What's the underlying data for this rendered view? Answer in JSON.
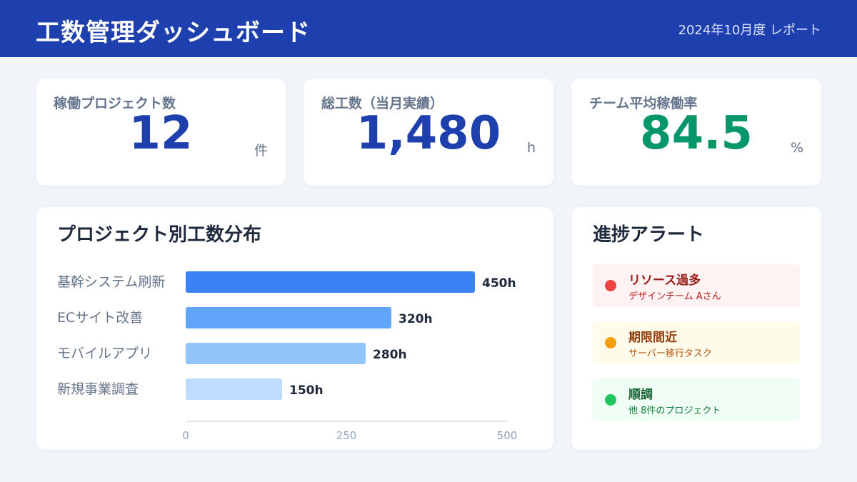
{
  "header": {
    "title": "工数管理ダッシュボード",
    "period": "2024年10月度 レポート"
  },
  "kpis": [
    {
      "label": "稼働プロジェクト数",
      "value": "12",
      "unit": "件"
    },
    {
      "label": "総工数（当月実績）",
      "value": "1,480",
      "unit": "h"
    },
    {
      "label": "チーム平均稼働率",
      "value": "84.5",
      "unit": "%"
    }
  ],
  "colors": {
    "header": "#1e40af",
    "kpi_value": "#1e40af",
    "kpi_value_good": "#059669"
  },
  "chart": {
    "title": "プロジェクト別工数分布"
  },
  "chart_data": {
    "type": "bar",
    "orientation": "horizontal",
    "categories": [
      "基幹システム刷新",
      "ECサイト改善",
      "モバイルアプリ",
      "新規事業調査"
    ],
    "values": [
      450,
      320,
      280,
      150
    ],
    "data_labels": [
      "450h",
      "320h",
      "280h",
      "150h"
    ],
    "bar_colors": [
      "#3b82f6",
      "#60a5fa",
      "#93c5fd",
      "#bfdbfe"
    ],
    "xticks": [
      "0",
      "250",
      "500"
    ],
    "xlim": [
      0,
      500
    ],
    "grid": false,
    "legend": "none"
  },
  "alerts": {
    "title": "進捗アラート",
    "items": [
      {
        "title": "リソース過多",
        "sub": "デザインチーム Aさん",
        "icon": "status-dot-red-icon",
        "dot": "#ef4444",
        "bg": "#fef2f2",
        "title_color": "#991b1b",
        "sub_color": "#b91c1c"
      },
      {
        "title": "期限間近",
        "sub": "サーバー移行タスク",
        "icon": "status-dot-amber-icon",
        "dot": "#f59e0b",
        "bg": "#fffbeb",
        "title_color": "#92400e",
        "sub_color": "#b45309"
      },
      {
        "title": "順調",
        "sub": "他 8件のプロジェクト",
        "icon": "status-dot-green-icon",
        "dot": "#22c55e",
        "bg": "#f0fdf4",
        "title_color": "#166534",
        "sub_color": "#15803d"
      }
    ]
  }
}
